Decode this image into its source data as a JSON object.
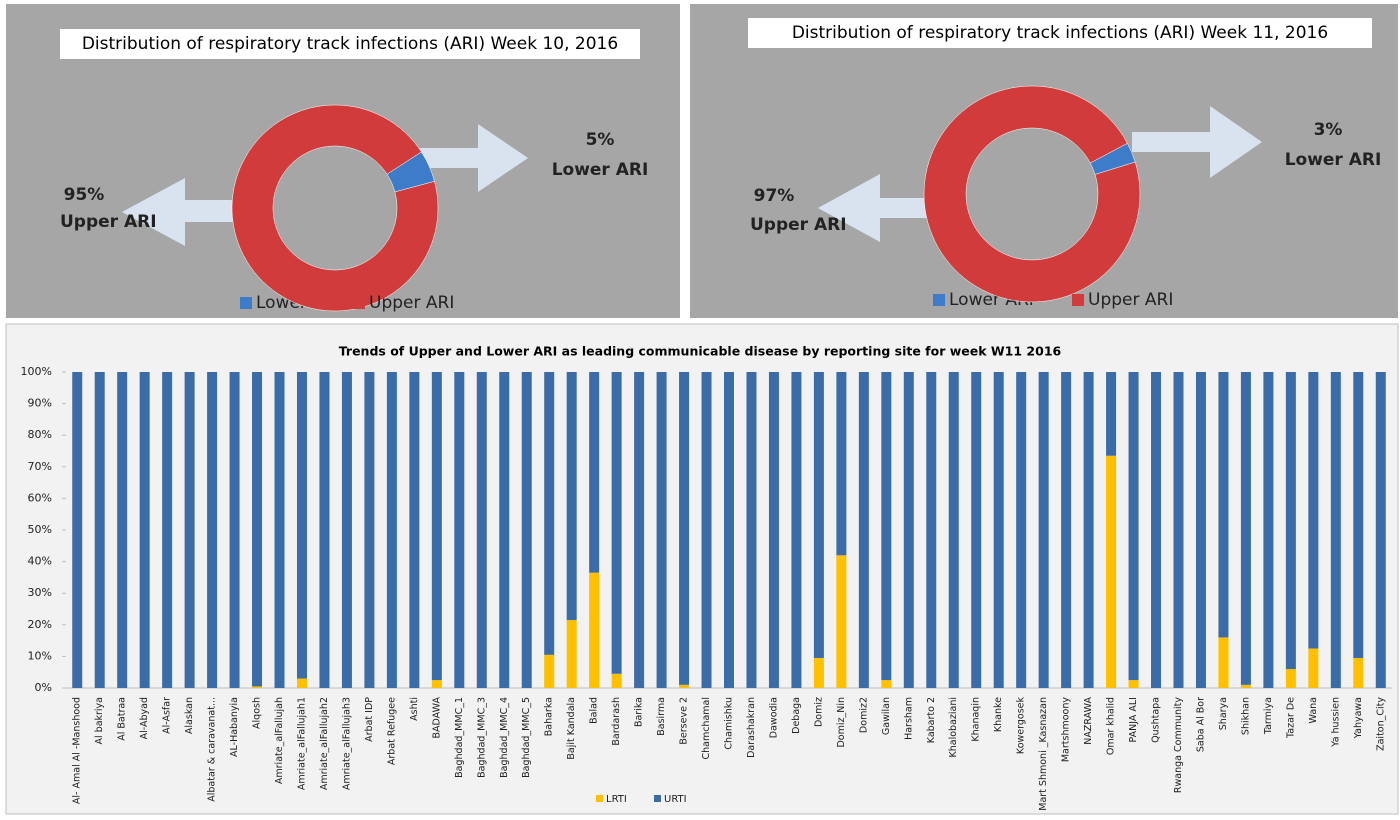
{
  "chart_data": [
    {
      "type": "donut",
      "title": "Distribution of respiratory track infections (ARI) Week 10, 2016",
      "categories": [
        "Lower ARI",
        "Upper ARI"
      ],
      "values": [
        5,
        95
      ],
      "value_labels": [
        "5%",
        "95%"
      ],
      "colors": [
        "#3d7cc9",
        "#d23b3b"
      ],
      "legend": "bottom"
    },
    {
      "type": "donut",
      "title": "Distribution of respiratory track infections (ARI) Week 11, 2016",
      "categories": [
        "Lower ARI",
        "Upper ARI"
      ],
      "values": [
        3,
        97
      ],
      "value_labels": [
        "3%",
        "97%"
      ],
      "colors": [
        "#3d7cc9",
        "#d23b3b"
      ],
      "legend": "bottom"
    },
    {
      "type": "stacked_bar",
      "title": "Trends of Upper and Lower ARI as leading communicable disease by reporting site for week W11 2016",
      "categories": [
        "Al- Amal Al -Manshood",
        "Al bakriya",
        "Al Batraa",
        "Al-Abyad",
        "Al-Asfar",
        "Alaskan",
        "Albatar & caravanat...",
        "AL-Habanyia",
        "Alqosh",
        "Amriate_alFallujah",
        "Amriate_alFallujah1",
        "Amriate_alFallujah2",
        "Amriate_alFallujah3",
        "Arbat IDP",
        "Arbat Refugee",
        "Ashti",
        "BADAWA",
        "Baghdad_MMC_1",
        "Baghdad_MMC_3",
        "Baghdad_MMC_4",
        "Baghdad_MMC_5",
        "Baharka",
        "Bajit Kandala",
        "Balad",
        "Bardarash",
        "Barika",
        "Basirma",
        "Berseve 2",
        "Chamchamal",
        "Chamishku",
        "Darashakran",
        "Dawodia",
        "Debaga",
        "Domiz",
        "Domiz_Nin",
        "Domiz2",
        "Gawilan",
        "Harsham",
        "Kabarto 2",
        "Khalobaziani",
        "Khanaqin",
        "Khanke",
        "Kowergosek",
        "Mart Shmoni _Kasnazan",
        "Martshmoony",
        "NAZRAWA",
        "Omar khalid",
        "PANJA ALI",
        "Qushtapa",
        "Rwanga Community",
        "Saba Al Bor",
        "Sharya",
        "Shikhan",
        "Tarmiya",
        "Tazar De",
        "Wana",
        "Ya hussien",
        "Yahyawa",
        "Zaiton_City"
      ],
      "series": [
        {
          "name": "LRTI",
          "color": "#ffc000",
          "values": [
            0,
            0,
            0,
            0,
            0,
            0,
            0,
            0,
            0.5,
            0,
            3,
            0,
            0,
            0,
            0,
            0,
            2.5,
            0,
            0,
            0,
            0,
            10.5,
            21.5,
            36.5,
            4.5,
            0,
            0,
            1,
            0,
            0,
            0,
            0,
            0,
            9.5,
            42,
            0,
            2.5,
            0,
            0,
            0,
            0,
            0,
            0,
            0,
            0,
            0,
            73.5,
            2.5,
            0,
            0,
            0,
            16,
            1,
            0,
            6,
            12.5,
            0,
            9.5,
            0
          ]
        },
        {
          "name": "URTI",
          "color": "#3b6ca8",
          "values": [
            100,
            100,
            100,
            100,
            100,
            100,
            100,
            100,
            99.5,
            100,
            97,
            100,
            100,
            100,
            100,
            100,
            97.5,
            100,
            100,
            100,
            100,
            89.5,
            78.5,
            63.5,
            95.5,
            100,
            100,
            99,
            100,
            100,
            100,
            100,
            100,
            90.5,
            58,
            100,
            97.5,
            100,
            100,
            100,
            100,
            100,
            100,
            100,
            100,
            100,
            26.5,
            97.5,
            100,
            100,
            100,
            84,
            99,
            100,
            94,
            87.5,
            100,
            90.5,
            100
          ]
        }
      ],
      "ylim": [
        0,
        100
      ],
      "yticks": [
        {
          "value": 0,
          "label": "0%"
        },
        {
          "value": 10,
          "label": "10%"
        },
        {
          "value": 20,
          "label": "20%"
        },
        {
          "value": 30,
          "label": "30%"
        },
        {
          "value": 40,
          "label": "40%"
        },
        {
          "value": 50,
          "label": "50%"
        },
        {
          "value": 60,
          "label": "60%"
        },
        {
          "value": 70,
          "label": "70%"
        },
        {
          "value": 80,
          "label": "80%"
        },
        {
          "value": 90,
          "label": "90%"
        },
        {
          "value": 100,
          "label": "100%"
        }
      ],
      "grid": false,
      "legend": "bottom"
    }
  ]
}
